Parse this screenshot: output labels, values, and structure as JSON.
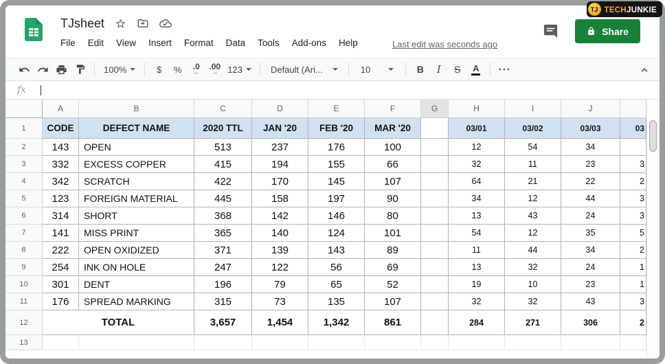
{
  "branding": {
    "monogram": "TJ",
    "name_gold": "TECH",
    "name_white": "JUNKIE"
  },
  "titlebar": {
    "doc_title": "TJsheet",
    "menus": [
      "File",
      "Edit",
      "View",
      "Insert",
      "Format",
      "Data",
      "Tools",
      "Add-ons",
      "Help"
    ],
    "last_edit": "Last edit was seconds ago",
    "share_label": "Share"
  },
  "toolbar": {
    "zoom": "100%",
    "currency": "$",
    "percent": "%",
    "decrease_decimal": ".0",
    "increase_decimal": ".00",
    "number_format": "123",
    "font_name": "Default (Ari...",
    "font_size": "10",
    "bold": "B",
    "italic": "I",
    "strikethrough": "S",
    "text_color": "A",
    "more": "···"
  },
  "formula_bar": {
    "fx_label": "fx"
  },
  "sheet": {
    "column_letters": [
      "A",
      "B",
      "C",
      "D",
      "E",
      "F",
      "G",
      "H",
      "I",
      "J",
      ""
    ],
    "selected_column_letter": "G",
    "header_row": {
      "row_num": "1",
      "cells": [
        "CODE",
        "DEFECT NAME",
        "2020 TTL",
        "JAN '20",
        "FEB '20",
        "MAR '20",
        "",
        "03/01",
        "03/02",
        "03/03",
        "03"
      ]
    },
    "data_rows": [
      {
        "row_num": "2",
        "cells": [
          "143",
          "OPEN",
          "513",
          "237",
          "176",
          "100",
          "",
          "12",
          "54",
          "34",
          ""
        ]
      },
      {
        "row_num": "3",
        "cells": [
          "332",
          "EXCESS COPPER",
          "415",
          "194",
          "155",
          "66",
          "",
          "32",
          "11",
          "23",
          "3"
        ]
      },
      {
        "row_num": "4",
        "cells": [
          "342",
          "SCRATCH",
          "422",
          "170",
          "145",
          "107",
          "",
          "64",
          "21",
          "22",
          "2"
        ]
      },
      {
        "row_num": "5",
        "cells": [
          "123",
          "FOREIGN MATERIAL",
          "445",
          "158",
          "197",
          "90",
          "",
          "34",
          "12",
          "44",
          "3"
        ]
      },
      {
        "row_num": "6",
        "cells": [
          "314",
          "SHORT",
          "368",
          "142",
          "146",
          "80",
          "",
          "13",
          "43",
          "24",
          "3"
        ]
      },
      {
        "row_num": "7",
        "cells": [
          "141",
          "MISS PRINT",
          "365",
          "140",
          "124",
          "101",
          "",
          "54",
          "12",
          "35",
          "5"
        ]
      },
      {
        "row_num": "8",
        "cells": [
          "222",
          "OPEN OXIDIZED",
          "371",
          "139",
          "143",
          "89",
          "",
          "11",
          "44",
          "34",
          "2"
        ]
      },
      {
        "row_num": "9",
        "cells": [
          "254",
          "INK ON HOLE",
          "247",
          "122",
          "56",
          "69",
          "",
          "13",
          "32",
          "24",
          "1"
        ]
      },
      {
        "row_num": "10",
        "cells": [
          "301",
          "DENT",
          "196",
          "79",
          "65",
          "52",
          "",
          "19",
          "10",
          "23",
          "1"
        ]
      },
      {
        "row_num": "11",
        "cells": [
          "176",
          "SPREAD MARKING",
          "315",
          "73",
          "135",
          "107",
          "",
          "32",
          "32",
          "43",
          "3"
        ]
      }
    ],
    "total_row": {
      "row_num": "12",
      "label": "TOTAL",
      "cells": [
        "3,657",
        "1,454",
        "1,342",
        "861",
        "",
        "284",
        "271",
        "306",
        "2"
      ]
    },
    "empty_row": {
      "row_num": "13"
    }
  }
}
